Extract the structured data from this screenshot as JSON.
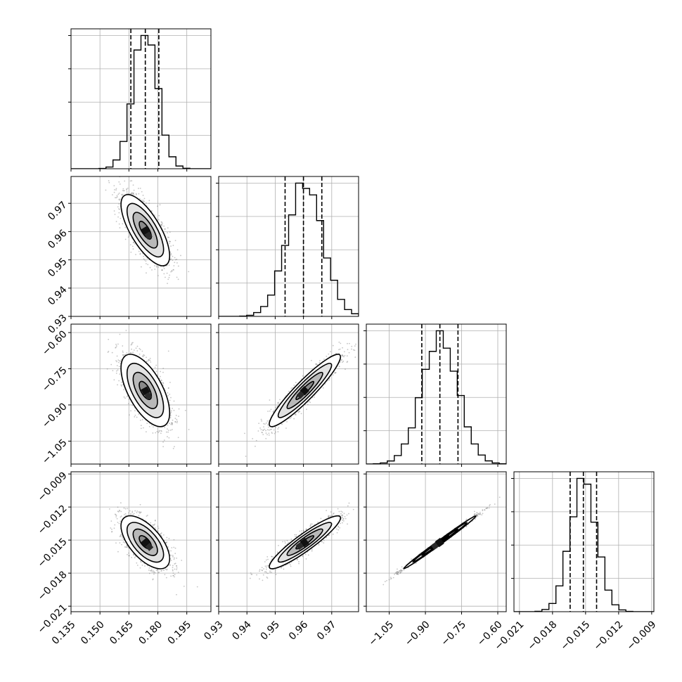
{
  "chart_data": {
    "type": "corner",
    "title": "",
    "grid": true,
    "parameters": [
      {
        "range": [
          0.135,
          0.2075
        ],
        "ticks": [
          0.135,
          0.15,
          0.165,
          0.18,
          0.195
        ],
        "tick_labels": [
          "0.135",
          "0.150",
          "0.165",
          "0.180",
          "0.195"
        ],
        "quantiles": [
          0.166,
          0.1735,
          0.1805
        ],
        "mean": 0.1735,
        "sd": 0.0063
      },
      {
        "range": [
          0.93,
          0.9795
        ],
        "ticks": [
          0.93,
          0.94,
          0.95,
          0.96,
          0.97
        ],
        "tick_labels": [
          "0.93",
          "0.94",
          "0.95",
          "0.96",
          "0.97"
        ],
        "quantiles": [
          0.9535,
          0.96,
          0.9665
        ],
        "mean": 0.9605,
        "sd": 0.0063
      },
      {
        "range": [
          -1.145,
          -0.565
        ],
        "ticks": [
          -1.05,
          -0.9,
          -0.75,
          -0.6
        ],
        "tick_labels": [
          "−1.05",
          "−0.90",
          "−0.75",
          "−0.60"
        ],
        "quantiles": [
          -0.915,
          -0.84,
          -0.765
        ],
        "mean": -0.84,
        "sd": 0.075
      },
      {
        "range": [
          -0.0215,
          -0.0088
        ],
        "ticks": [
          -0.021,
          -0.018,
          -0.015,
          -0.012,
          -0.009
        ],
        "tick_labels": [
          "−0.021",
          "−0.018",
          "−0.015",
          "−0.012",
          "−0.009"
        ],
        "quantiles": [
          -0.0164,
          -0.0152,
          -0.014
        ],
        "mean": -0.0152,
        "sd": 0.0012
      }
    ],
    "y_tick_labels_rows": {
      "1": [
        "0.93",
        "0.94",
        "0.95",
        "0.96",
        "0.97"
      ],
      "2": [
        "−1.05",
        "−0.90",
        "−0.75",
        "−0.60"
      ],
      "3": [
        "−0.021",
        "−0.018",
        "−0.015",
        "−0.012",
        "−0.009"
      ]
    },
    "correlations": [
      {
        "i": 0,
        "j": 1,
        "rho": -0.72
      },
      {
        "i": 0,
        "j": 2,
        "rho": -0.62
      },
      {
        "i": 0,
        "j": 3,
        "rho": -0.62
      },
      {
        "i": 1,
        "j": 2,
        "rho": 0.93
      },
      {
        "i": 1,
        "j": 3,
        "rho": 0.92
      },
      {
        "i": 2,
        "j": 3,
        "rho": 0.995
      }
    ],
    "histogram_bins": 20,
    "colors": {
      "line": "#000000",
      "grid": "#b0b0b0",
      "points": "#7f7f7f"
    }
  }
}
